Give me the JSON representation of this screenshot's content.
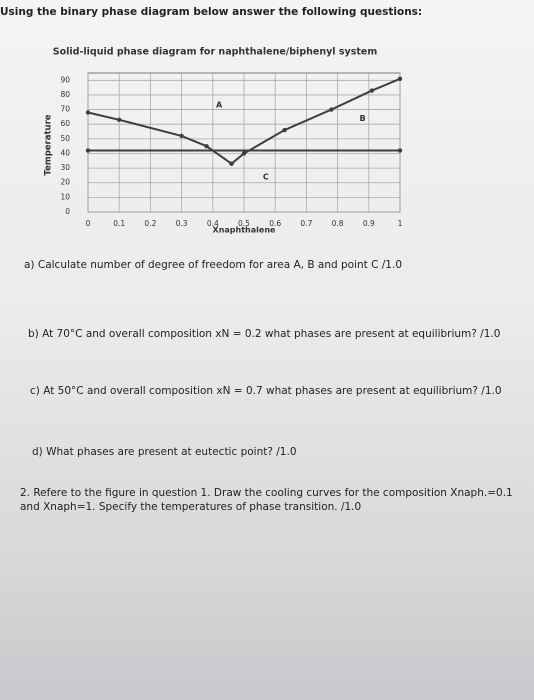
{
  "header": {
    "instruction": "Using the binary phase diagram below answer the following questions:"
  },
  "chart_data": {
    "type": "line",
    "title": "Solid-liquid phase diagram for naphthalene/biphenyl system",
    "x_label": "Xnaphthalene",
    "y_label": "Temperature",
    "xlim": [
      0,
      1
    ],
    "ylim": [
      0,
      95
    ],
    "xticks": [
      0,
      0.1,
      0.2,
      0.3,
      0.4,
      0.5,
      0.6,
      0.7,
      0.8,
      0.9,
      1
    ],
    "yticks": [
      0,
      10,
      20,
      30,
      40,
      50,
      60,
      70,
      80,
      90
    ],
    "grid": true,
    "series": [
      {
        "color": "#3a3f4a",
        "x": [
          0,
          0.1,
          0.3,
          0.38,
          0.46
        ],
        "values": [
          68,
          63,
          52,
          45,
          33
        ]
      },
      {
        "color": "#3a3f4a",
        "x": [
          0.46,
          0.5,
          0.63,
          0.78,
          0.91,
          1
        ],
        "values": [
          33,
          40,
          56,
          70,
          83,
          91
        ]
      },
      {
        "color": "#3a3f4a",
        "x": [
          0,
          1
        ],
        "values": [
          42,
          42
        ]
      }
    ],
    "annotations": [
      {
        "text": "A",
        "x": 0.42,
        "y": 73
      },
      {
        "text": "B",
        "x": 0.88,
        "y": 64
      },
      {
        "text": "C",
        "x": 0.57,
        "y": 24
      }
    ]
  },
  "questions": [
    "a)  Calculate number of degree of freedom for area A, B and point C /1.0",
    "b)  At 70°C and overall composition xN = 0.2 what phases are present at equilibrium? /1.0",
    "c)  At 50°C and overall composition xN = 0.7 what phases are present at equilibrium? /1.0",
    "d)  What phases are present at eutectic point? /1.0",
    "2. Refere to the figure in question 1. Draw the cooling curves for the composition Xnaph.=0.1 and Xnaph=1. Specify the temperatures of phase transition. /1.0"
  ]
}
